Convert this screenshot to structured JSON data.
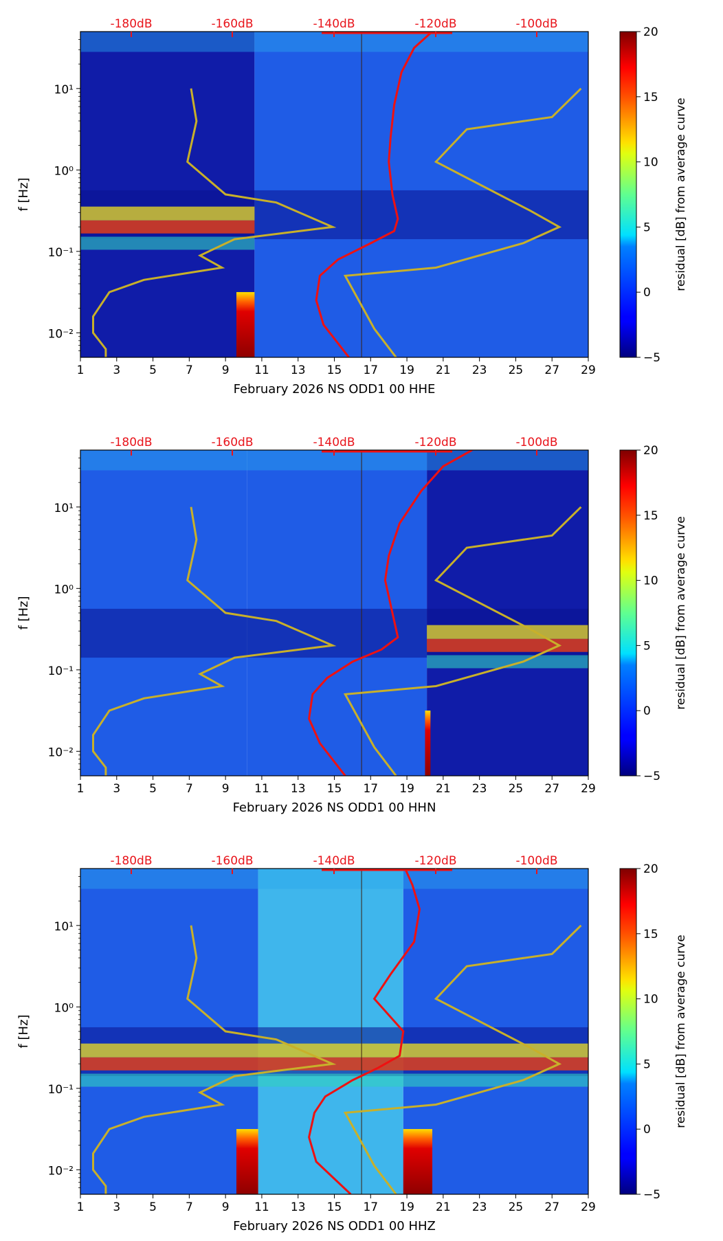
{
  "chart_data": [
    {
      "type": "heatmap",
      "title": "",
      "xlabel": "February 2026 NS ODD1 00 HHE",
      "ylabel": "f [Hz]",
      "x_ticks": [
        "1",
        "3",
        "5",
        "7",
        "9",
        "11",
        "13",
        "15",
        "17",
        "19",
        "21",
        "23",
        "25",
        "27",
        "29"
      ],
      "xlim": [
        1,
        29
      ],
      "ylim_hz": [
        0.005,
        50
      ],
      "y_ticks": [
        "10⁻²",
        "10⁻¹",
        "10⁰",
        "10¹"
      ],
      "top_ticks": [
        "-180dB",
        "-160dB",
        "-140dB",
        "-120dB",
        "-100dB"
      ],
      "colorbar": {
        "label": "residual [dB] from average curve",
        "ticks": [
          "−5",
          "0",
          "5",
          "10",
          "15",
          "20"
        ],
        "range": [
          -5,
          20
        ]
      },
      "blocks": [
        {
          "x0": 1,
          "x1": 10.6,
          "level": "dark"
        },
        {
          "x0": 10.6,
          "x1": 29,
          "level": "mid"
        }
      ],
      "microseism_band": {
        "from_day": 1,
        "to_day": 10.6
      },
      "low_freq_red_blocks": [
        {
          "x0": 9.6,
          "x1": 10.6
        }
      ],
      "red_curve_day": [
        20.4,
        19.4,
        18.7,
        18.3,
        18.1,
        18.0,
        18.2,
        18.5,
        18.3,
        17.0,
        15.2,
        14.2,
        14.0,
        14.4,
        15.8
      ],
      "low_noise_model_day": [
        7.1,
        7.4,
        6.9,
        9.0,
        11.8,
        14.9,
        9.5,
        7.6,
        8.8,
        4.5,
        2.6,
        1.7,
        1.7,
        2.4,
        2.4
      ],
      "high_noise_model_day": [
        28.6,
        27.0,
        22.3,
        20.6,
        25.8,
        27.4,
        25.4,
        20.6,
        15.6,
        17.2,
        18.4
      ]
    },
    {
      "type": "heatmap",
      "title": "",
      "xlabel": "February 2026 NS ODD1 00 HHN",
      "ylabel": "f [Hz]",
      "x_ticks": [
        "1",
        "3",
        "5",
        "7",
        "9",
        "11",
        "13",
        "15",
        "17",
        "19",
        "21",
        "23",
        "25",
        "27",
        "29"
      ],
      "xlim": [
        1,
        29
      ],
      "ylim_hz": [
        0.005,
        50
      ],
      "y_ticks": [
        "10⁻²",
        "10⁻¹",
        "10⁰",
        "10¹"
      ],
      "top_ticks": [
        "-180dB",
        "-160dB",
        "-140dB",
        "-120dB",
        "-100dB"
      ],
      "colorbar": {
        "label": "residual [dB] from average curve",
        "ticks": [
          "−5",
          "0",
          "5",
          "10",
          "15",
          "20"
        ],
        "range": [
          -5,
          20
        ]
      },
      "blocks": [
        {
          "x0": 1,
          "x1": 10.2,
          "level": "mid"
        },
        {
          "x0": 10.2,
          "x1": 20.1,
          "level": "mid"
        },
        {
          "x0": 20.1,
          "x1": 29,
          "level": "dark"
        }
      ],
      "microseism_band": {
        "from_day": 20.1,
        "to_day": 29
      },
      "low_freq_red_blocks": [
        {
          "x0": 20.0,
          "x1": 20.3
        }
      ],
      "red_curve_day": [
        22.6,
        21.0,
        19.8,
        18.6,
        18.0,
        17.8,
        18.2,
        18.5,
        17.6,
        16.0,
        14.6,
        13.8,
        13.6,
        14.2,
        15.6
      ],
      "low_noise_model_day": [
        7.1,
        7.4,
        6.9,
        9.0,
        11.8,
        14.9,
        9.5,
        7.6,
        8.8,
        4.5,
        2.6,
        1.7,
        1.7,
        2.4,
        2.4
      ],
      "high_noise_model_day": [
        28.6,
        27.0,
        22.3,
        20.6,
        25.8,
        27.4,
        25.4,
        20.6,
        15.6,
        17.2,
        18.4
      ]
    },
    {
      "type": "heatmap",
      "title": "",
      "xlabel": "February 2026 NS ODD1 00 HHZ",
      "ylabel": "f [Hz]",
      "x_ticks": [
        "1",
        "3",
        "5",
        "7",
        "9",
        "11",
        "13",
        "15",
        "17",
        "19",
        "21",
        "23",
        "25",
        "27",
        "29"
      ],
      "xlim": [
        1,
        29
      ],
      "ylim_hz": [
        0.005,
        50
      ],
      "y_ticks": [
        "10⁻²",
        "10⁻¹",
        "10⁰",
        "10¹"
      ],
      "top_ticks": [
        "-180dB",
        "-160dB",
        "-140dB",
        "-120dB",
        "-100dB"
      ],
      "colorbar": {
        "label": "residual [dB] from average curve",
        "ticks": [
          "−5",
          "0",
          "5",
          "10",
          "15",
          "20"
        ],
        "range": [
          -5,
          20
        ]
      },
      "blocks": [
        {
          "x0": 1,
          "x1": 10.8,
          "level": "mid"
        },
        {
          "x0": 10.8,
          "x1": 18.8,
          "level": "bright"
        },
        {
          "x0": 18.8,
          "x1": 29,
          "level": "mid"
        }
      ],
      "microseism_band": {
        "from_day": 1,
        "to_day": 29
      },
      "low_freq_red_blocks": [
        {
          "x0": 9.6,
          "x1": 10.8
        },
        {
          "x0": 18.8,
          "x1": 20.4
        }
      ],
      "red_curve_day": [
        18.9,
        19.3,
        19.7,
        19.4,
        18.1,
        17.2,
        18.8,
        18.6,
        17.4,
        16.0,
        14.5,
        13.9,
        13.6,
        14.0,
        15.9
      ],
      "low_noise_model_day": [
        7.1,
        7.4,
        6.9,
        9.0,
        11.8,
        14.9,
        9.5,
        7.6,
        8.8,
        4.5,
        2.6,
        1.7,
        1.7,
        2.4,
        2.4
      ],
      "high_noise_model_day": [
        28.6,
        27.0,
        22.3,
        20.6,
        25.8,
        27.4,
        25.4,
        20.6,
        15.6,
        17.2,
        18.4
      ]
    }
  ],
  "shared": {
    "red_curve_freqs_log": [
      1.7,
      1.5,
      1.2,
      0.8,
      0.4,
      0.1,
      -0.3,
      -0.6,
      -0.75,
      -0.9,
      -1.1,
      -1.3,
      -1.6,
      -1.9,
      -2.3
    ],
    "low_noise_freqs_log": [
      1.0,
      0.6,
      0.1,
      -0.3,
      -0.4,
      -0.7,
      -0.85,
      -1.05,
      -1.2,
      -1.35,
      -1.5,
      -1.8,
      -2.0,
      -2.2,
      -2.3
    ],
    "high_noise_freqs_log": [
      1.0,
      0.65,
      0.5,
      0.1,
      -0.5,
      -0.7,
      -0.9,
      -1.2,
      -1.3,
      -1.95,
      -2.3
    ],
    "colors": {
      "red_curve": "#ee1111",
      "noise_model": "#c8b02a",
      "top_ticks": "#e8141b"
    }
  }
}
